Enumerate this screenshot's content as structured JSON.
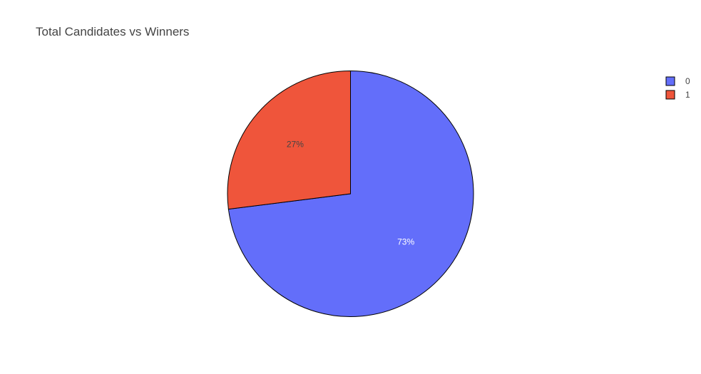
{
  "chart_data": {
    "type": "pie",
    "title": "Total Candidates vs Winners",
    "labels": [
      "0",
      "1"
    ],
    "values": [
      73,
      27
    ],
    "value_labels": [
      "73%",
      "27%"
    ],
    "colors": [
      "#636EFA",
      "#EF553B"
    ],
    "label_colors": [
      "#ffffff",
      "#444444"
    ],
    "slice_border_color": "#000000",
    "start_angle_deg": 90,
    "direction": "clockwise",
    "legend_position": "top-right"
  }
}
